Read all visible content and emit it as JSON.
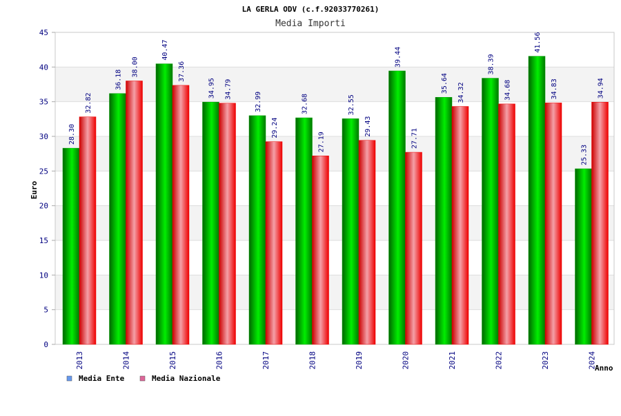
{
  "chart_data": {
    "type": "bar",
    "title": "LA GERLA ODV (c.f.92033770261)",
    "subtitle": "Media Importi",
    "xlabel": "Anno",
    "ylabel": "Euro",
    "ylim": [
      0,
      45
    ],
    "yticks": [
      0,
      5,
      10,
      15,
      20,
      25,
      30,
      35,
      40,
      45
    ],
    "ytick_labels": [
      "0",
      "5",
      "10",
      "15",
      "20",
      "25",
      "30",
      "35",
      "40",
      "45"
    ],
    "categories": [
      "2013",
      "2014",
      "2015",
      "2016",
      "2017",
      "2018",
      "2019",
      "2020",
      "2021",
      "2022",
      "2023",
      "2024"
    ],
    "series": [
      {
        "name": "Media Ente",
        "color": "#00a000",
        "legend_color": "#6699ee",
        "values": [
          28.3,
          36.18,
          40.47,
          34.95,
          32.99,
          32.68,
          32.55,
          39.44,
          35.64,
          38.39,
          41.56,
          25.33
        ],
        "labels": [
          "28.30",
          "36.18",
          "40.47",
          "34.95",
          "32.99",
          "32.68",
          "32.55",
          "39.44",
          "35.64",
          "38.39",
          "41.56",
          "25.33"
        ]
      },
      {
        "name": "Media Nazionale",
        "color": "#ee0000",
        "legend_color": "#dd6699",
        "values": [
          32.82,
          38.0,
          37.36,
          34.79,
          29.24,
          27.19,
          29.43,
          27.71,
          34.32,
          34.68,
          34.83,
          34.94
        ],
        "labels": [
          "32.82",
          "38.00",
          "37.36",
          "34.79",
          "29.24",
          "27.19",
          "29.43",
          "27.71",
          "34.32",
          "34.68",
          "34.83",
          "34.94"
        ]
      }
    ],
    "legend_position": "bottom-left",
    "grid": true
  }
}
